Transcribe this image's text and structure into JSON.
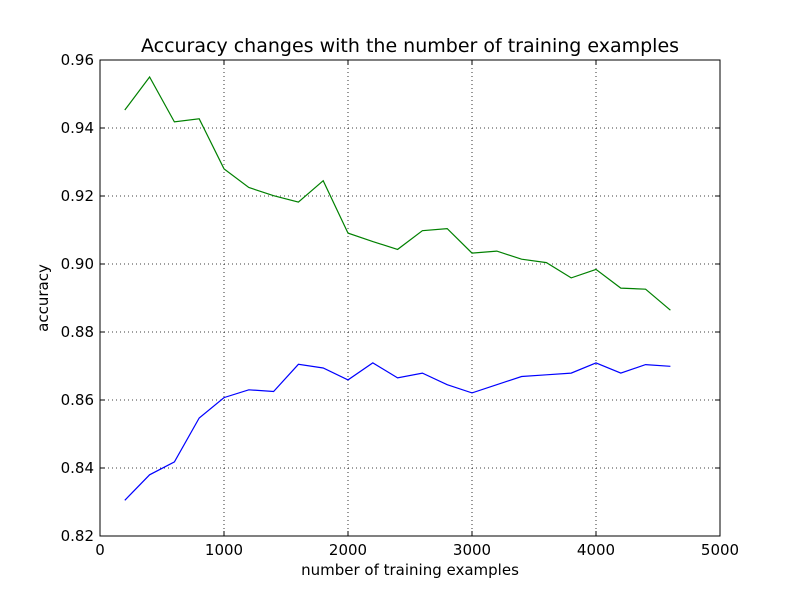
{
  "chart_data": {
    "type": "line",
    "title": "Accuracy changes with the number of training examples",
    "xlabel": "number of training examples",
    "ylabel": "accuracy",
    "xlim": [
      0,
      5000
    ],
    "ylim": [
      0.82,
      0.96
    ],
    "grid": true,
    "x_ticks": [
      "0",
      "1000",
      "2000",
      "3000",
      "4000",
      "5000"
    ],
    "y_ticks": [
      "0.82",
      "0.84",
      "0.86",
      "0.88",
      "0.90",
      "0.92",
      "0.94",
      "0.96"
    ],
    "x": [
      200,
      400,
      600,
      800,
      1000,
      1200,
      1400,
      1600,
      1800,
      2000,
      2200,
      2400,
      2600,
      2800,
      3000,
      3200,
      3400,
      3600,
      3800,
      4000,
      4200,
      4400,
      4600
    ],
    "series": [
      {
        "color": "#008000",
        "values": [
          0.9453,
          0.955,
          0.9418,
          0.9427,
          0.928,
          0.9225,
          0.9201,
          0.9182,
          0.9245,
          0.9091,
          0.9066,
          0.9043,
          0.9098,
          0.9104,
          0.9032,
          0.9038,
          0.9014,
          0.9004,
          0.8959,
          0.8984,
          0.8929,
          0.8926,
          0.8864
        ]
      },
      {
        "color": "#0000ff",
        "values": [
          0.8305,
          0.838,
          0.8418,
          0.8547,
          0.8607,
          0.863,
          0.8625,
          0.8705,
          0.8694,
          0.8659,
          0.8709,
          0.8665,
          0.8679,
          0.8645,
          0.8621,
          0.8645,
          0.8669,
          0.8674,
          0.8679,
          0.8709,
          0.8679,
          0.8704,
          0.8699
        ]
      }
    ]
  }
}
